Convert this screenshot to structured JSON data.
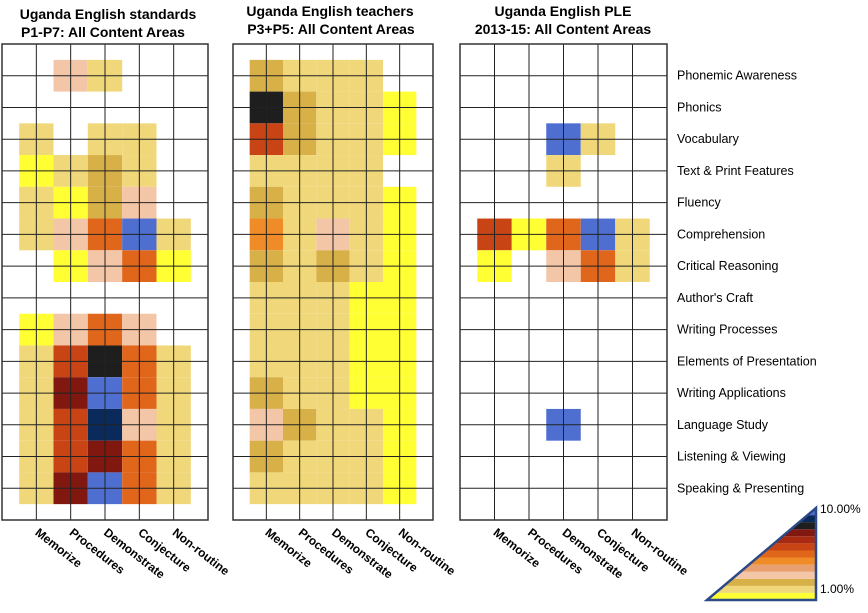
{
  "chart_data": {
    "type": "heatmap",
    "rows": [
      "Phonemic Awareness",
      "Phonics",
      "Vocabulary",
      "Text & Print Features",
      "Fluency",
      "Comprehension",
      "Critical Reasoning",
      "Author's Craft",
      "Writing Processes",
      "Elements of Presentation",
      "Writing Applications",
      "Language Study",
      "Listening & Viewing",
      "Speaking & Presenting"
    ],
    "columns": [
      "Memorize",
      "Procedures",
      "Demonstrate",
      "Conjecture",
      "Non-routine"
    ],
    "panels": [
      {
        "title_line1": "Uganda English standards",
        "title_line2": "P1-P7: All Content Areas",
        "cells": [
          [
            0,
            0.02,
            0.012,
            0,
            0
          ],
          [
            0,
            0,
            0,
            0,
            0
          ],
          [
            0.012,
            0,
            0.012,
            0.012,
            0
          ],
          [
            0.01,
            0.012,
            0.015,
            0.012,
            0
          ],
          [
            0.012,
            0.01,
            0.015,
            0.018,
            0
          ],
          [
            0.012,
            0.02,
            0.03,
            0.1,
            0.012
          ],
          [
            0,
            0.01,
            0.02,
            0.03,
            0.01
          ],
          [
            0,
            0,
            0,
            0,
            0
          ],
          [
            0.01,
            0.02,
            0.03,
            0.02,
            0
          ],
          [
            0.012,
            0.04,
            0.06,
            0.03,
            0.012
          ],
          [
            0.012,
            0.05,
            0.1,
            0.03,
            0.012
          ],
          [
            0.012,
            0.04,
            0.08,
            0.02,
            0.012
          ],
          [
            0.012,
            0.04,
            0.05,
            0.03,
            0.012
          ],
          [
            0.012,
            0.05,
            0.1,
            0.03,
            0.012
          ]
        ]
      },
      {
        "title_line1": "Uganda English teachers",
        "title_line2": "P3+P5: All Content Areas",
        "cells": [
          [
            0.015,
            0.012,
            0.012,
            0.012,
            0
          ],
          [
            0.06,
            0.015,
            0.012,
            0.012,
            0.01
          ],
          [
            0.04,
            0.015,
            0.012,
            0.012,
            0.01
          ],
          [
            0.012,
            0.012,
            0.012,
            0.012,
            0
          ],
          [
            0.015,
            0.012,
            0.012,
            0.012,
            0.01
          ],
          [
            0.025,
            0.012,
            0.02,
            0.012,
            0.01
          ],
          [
            0.015,
            0.012,
            0.015,
            0.012,
            0.01
          ],
          [
            0.012,
            0.012,
            0.012,
            0.01,
            0.01
          ],
          [
            0.012,
            0.012,
            0.012,
            0.01,
            0.01
          ],
          [
            0.012,
            0.012,
            0.012,
            0.01,
            0.01
          ],
          [
            0.015,
            0.012,
            0.012,
            0.01,
            0.01
          ],
          [
            0.02,
            0.015,
            0.012,
            0.012,
            0.01
          ],
          [
            0.015,
            0.012,
            0.012,
            0.012,
            0.01
          ],
          [
            0.012,
            0.012,
            0.012,
            0.012,
            0.01
          ]
        ]
      },
      {
        "title_line1": "Uganda English PLE",
        "title_line2": "2013-15: All Content Areas",
        "cells": [
          [
            0,
            0,
            0,
            0,
            0
          ],
          [
            0,
            0,
            0,
            0,
            0
          ],
          [
            0,
            0,
            0.1,
            0.012,
            0
          ],
          [
            0,
            0,
            0.012,
            0,
            0
          ],
          [
            0,
            0,
            0,
            0,
            0
          ],
          [
            0.04,
            0.01,
            0.03,
            0.1,
            0.012
          ],
          [
            0.01,
            0,
            0.02,
            0.03,
            0.012
          ],
          [
            0,
            0,
            0,
            0,
            0
          ],
          [
            0,
            0,
            0,
            0,
            0
          ],
          [
            0,
            0,
            0,
            0,
            0
          ],
          [
            0,
            0,
            0,
            0,
            0
          ],
          [
            0,
            0,
            0.1,
            0,
            0
          ],
          [
            0,
            0,
            0,
            0,
            0
          ],
          [
            0,
            0,
            0,
            0,
            0
          ]
        ]
      }
    ],
    "legend": {
      "max_label": "10.00%",
      "min_label": "1.00%"
    },
    "colors": [
      "#ffff33",
      "#f0d87a",
      "#d8b048",
      "#f4c6a8",
      "#e8a070",
      "#f08c28",
      "#e0661c",
      "#c84414",
      "#a82a10",
      "#801810",
      "#1e1e1e",
      "#0a2a5c",
      "#4f6fd0"
    ],
    "grid": true
  }
}
